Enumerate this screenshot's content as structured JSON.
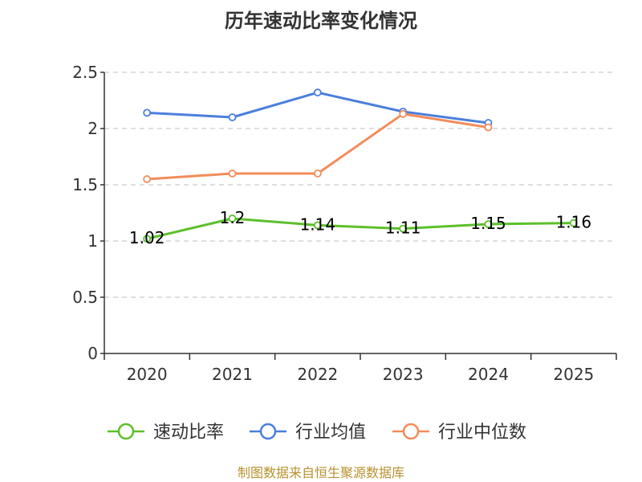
{
  "chart_data": {
    "type": "line",
    "title": "历年速动比率变化情况",
    "categories": [
      "2020",
      "2021",
      "2022",
      "2023",
      "2024",
      "2025"
    ],
    "ylim": [
      0,
      2.5
    ],
    "yticks": [
      0,
      0.5,
      1,
      1.5,
      2,
      2.5
    ],
    "ytick_labels": [
      "0",
      "0.5",
      "1",
      "1.5",
      "2",
      "2.5"
    ],
    "grid": true,
    "legend_position": "bottom",
    "series": [
      {
        "name": "速动比率",
        "color": "#5cc02b",
        "values": [
          1.02,
          1.2,
          1.14,
          1.11,
          1.15,
          1.16
        ],
        "labels": [
          "1.02",
          "1.2",
          "1.14",
          "1.11",
          "1.15",
          "1.16"
        ]
      },
      {
        "name": "行业均值",
        "color": "#4a7fdc",
        "values": [
          2.14,
          2.1,
          2.32,
          2.15,
          2.05,
          null
        ]
      },
      {
        "name": "行业中位数",
        "color": "#f28c5a",
        "values": [
          1.55,
          1.6,
          1.6,
          2.13,
          2.01,
          null
        ]
      }
    ],
    "source": "制图数据来自恒生聚源数据库"
  }
}
